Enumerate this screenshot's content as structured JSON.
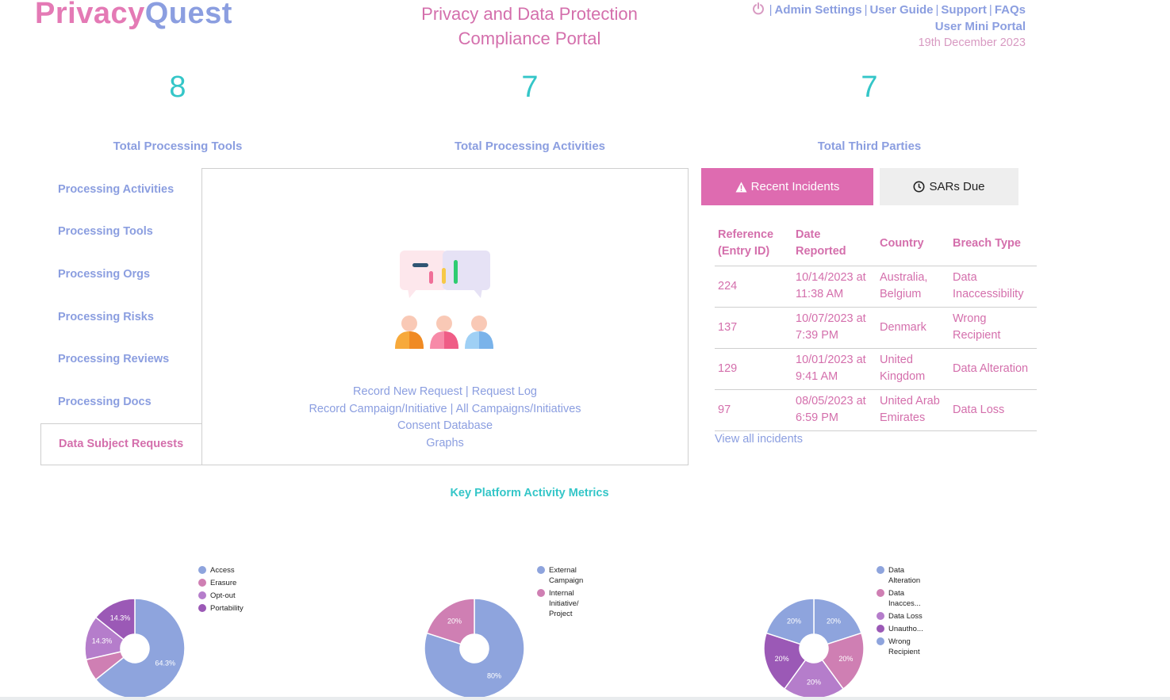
{
  "header": {
    "logo_part1": "Privacy",
    "logo_part2": "Quest",
    "portal_title_line1": "Privacy and Data Protection",
    "portal_title_line2": "Compliance Portal",
    "nav": {
      "admin_settings": "Admin Settings",
      "user_guide": "User Guide",
      "support": "Support",
      "faqs": "FAQs",
      "separator": "|",
      "mini_portal": "User Mini Portal",
      "date": "19th December 2023"
    }
  },
  "stats": [
    {
      "value": "8",
      "label": "Total Processing Tools"
    },
    {
      "value": "7",
      "label": "Total Processing Activities"
    },
    {
      "value": "7",
      "label": "Total Third Parties"
    }
  ],
  "sidebar": {
    "tabs": [
      {
        "label": "Processing Activities"
      },
      {
        "label": "Processing Tools"
      },
      {
        "label": "Processing Orgs"
      },
      {
        "label": "Processing Risks"
      },
      {
        "label": "Processing Reviews"
      },
      {
        "label": "Processing Docs"
      },
      {
        "label": "Data Subject Requests"
      }
    ]
  },
  "panel": {
    "record_new_request": "Record New Request",
    "request_log": "Request Log",
    "record_campaign": "Record Campaign/Initiative",
    "all_campaigns": "All Campaigns/Initiatives",
    "consent_database": "Consent Database",
    "graphs": "Graphs",
    "separator": "|"
  },
  "incidents": {
    "tab_recent": "Recent Incidents",
    "tab_sars": "SARs Due",
    "headers": {
      "ref_line1": "Reference",
      "ref_line2": "(Entry ID)",
      "date_line1": "Date",
      "date_line2": "Reported",
      "country": "Country",
      "breach_type": "Breach Type"
    },
    "rows": [
      {
        "ref": "224",
        "date1": "10/14/2023 at",
        "date2": "11:38 AM",
        "country1": "Australia,",
        "country2": "Belgium",
        "breach1": "Data",
        "breach2": "Inaccessibility"
      },
      {
        "ref": "137",
        "date1": "10/07/2023 at",
        "date2": "7:39 PM",
        "country1": "Denmark",
        "country2": "",
        "breach1": "Wrong",
        "breach2": "Recipient"
      },
      {
        "ref": "129",
        "date1": "10/01/2023 at",
        "date2": "9:41 AM",
        "country1": "United",
        "country2": "Kingdom",
        "breach1": "Data Alteration",
        "breach2": ""
      },
      {
        "ref": "97",
        "date1": "08/05/2023 at",
        "date2": "6:59 PM",
        "country1": "United Arab",
        "country2": "Emirates",
        "breach1": "Data Loss",
        "breach2": ""
      }
    ],
    "view_all": "View all incidents"
  },
  "metrics": {
    "title": "Key Platform Activity Metrics"
  },
  "chart_data": [
    {
      "type": "pie",
      "categories": [
        "Access",
        "Erasure",
        "Opt-out",
        "Portability"
      ],
      "values": [
        64.3,
        7.1,
        14.3,
        14.3
      ],
      "slice_labels": [
        "64.3%",
        "",
        "14.3%",
        "14.3%"
      ],
      "colors": [
        "#8ea4dd",
        "#cf7fb3",
        "#b57dcb",
        "#9b59b6"
      ],
      "legend_position": "top-right"
    },
    {
      "type": "pie",
      "categories": [
        "External Campaign",
        "Internal Initiative/ Project"
      ],
      "legend_lines": [
        [
          "External",
          "Campaign"
        ],
        [
          "Internal",
          "Initiative/",
          "Project"
        ]
      ],
      "values": [
        80,
        20
      ],
      "slice_labels": [
        "80%",
        "20%"
      ],
      "colors": [
        "#8ea4dd",
        "#cf7fb3"
      ],
      "legend_position": "top-right"
    },
    {
      "type": "pie",
      "categories": [
        "Data Alteration",
        "Data Inacces...",
        "Data Loss",
        "Unautho...",
        "Wrong Recipient"
      ],
      "legend_lines": [
        [
          "Data",
          "Alteration"
        ],
        [
          "Data",
          "Inacces..."
        ],
        [
          "Data Loss"
        ],
        [
          "Unautho..."
        ],
        [
          "Wrong",
          "Recipient"
        ]
      ],
      "values": [
        20,
        20,
        20,
        20,
        20
      ],
      "slice_labels": [
        "20%",
        "20%",
        "20%",
        "20%",
        "20%"
      ],
      "colors": [
        "#8ea4dd",
        "#cf7fb3",
        "#b57dcb",
        "#9b59b6",
        "#8ea4dd"
      ],
      "legend_position": "top-right"
    }
  ]
}
